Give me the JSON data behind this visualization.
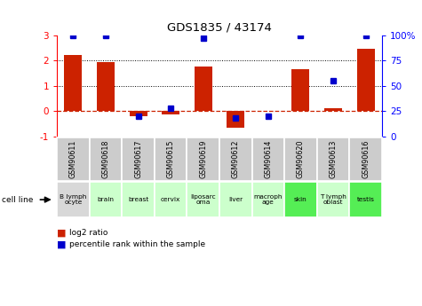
{
  "title": "GDS1835 / 43174",
  "samples": [
    "GSM90611",
    "GSM90618",
    "GSM90617",
    "GSM90615",
    "GSM90619",
    "GSM90612",
    "GSM90614",
    "GSM90620",
    "GSM90613",
    "GSM90616"
  ],
  "cell_lines": [
    "B lymph\nocyte",
    "brain",
    "breast",
    "cervix",
    "liposarc\noma",
    "liver",
    "macroph\nage",
    "skin",
    "T lymph\noblast",
    "testis"
  ],
  "log2_ratio": [
    2.2,
    1.95,
    -0.2,
    -0.15,
    1.75,
    -0.65,
    0.0,
    1.65,
    0.1,
    2.45
  ],
  "percentile_rank": [
    100,
    100,
    20,
    28,
    97,
    18,
    20,
    100,
    55,
    100
  ],
  "bar_color": "#cc2200",
  "dot_color": "#0000cc",
  "ylim": [
    -1,
    3
  ],
  "y2lim": [
    0,
    100
  ],
  "yticks": [
    -1,
    0,
    1,
    2,
    3
  ],
  "y2ticks": [
    0,
    25,
    50,
    75,
    100
  ],
  "y2ticklabels": [
    "0",
    "25",
    "50",
    "75",
    "100%"
  ],
  "hline_color": "#cc2200",
  "dotline_y": [
    1,
    2
  ],
  "cell_line_colors": [
    "#d8d8d8",
    "#ccffcc",
    "#ccffcc",
    "#ccffcc",
    "#ccffcc",
    "#ccffcc",
    "#ccffcc",
    "#55ee55",
    "#ccffcc",
    "#55ee55"
  ],
  "gsm_bg_color": "#cccccc"
}
